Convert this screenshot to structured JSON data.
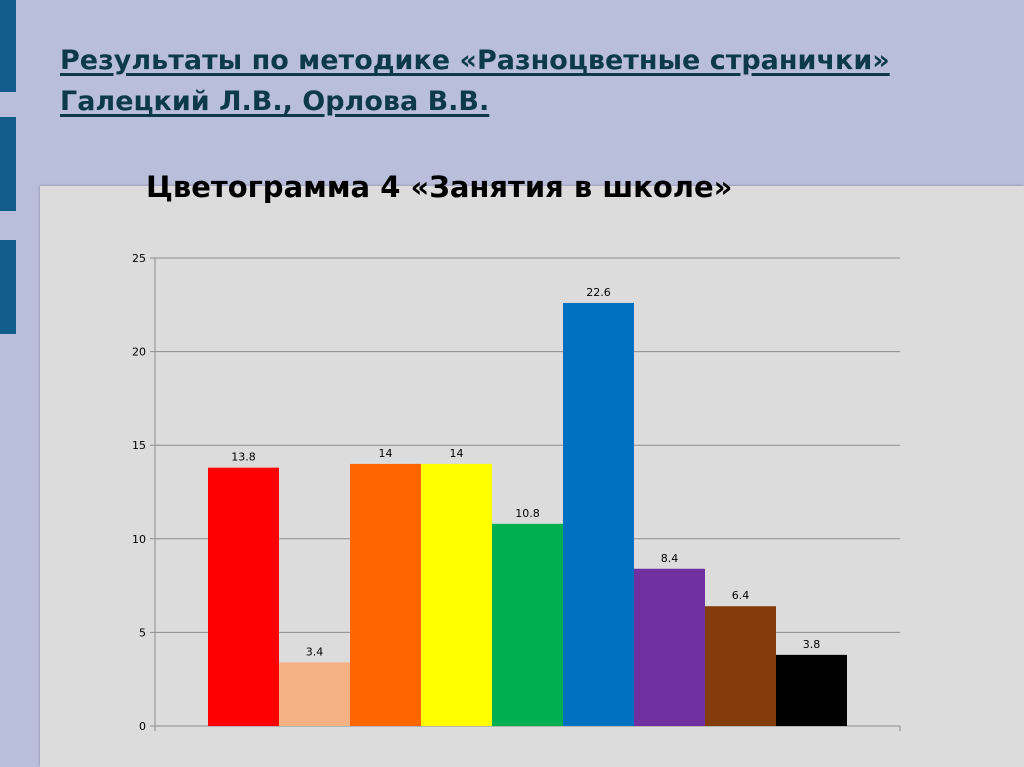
{
  "slide": {
    "heading": "Результаты по методике «Разноцветные странички» Галецкий Л.В., Орлова В.В."
  },
  "chart_data": {
    "type": "bar",
    "title": "Цветограмма 4 «Занятия в школе»",
    "xlabel": "",
    "ylabel": "",
    "ylim": [
      0,
      25
    ],
    "yticks": [
      "0",
      "5",
      "10",
      "15",
      "20",
      "25"
    ],
    "grid": true,
    "legend": "none",
    "values": [
      13.8,
      3.4,
      14,
      14,
      10.8,
      22.6,
      8.4,
      6.4,
      3.8
    ],
    "labels": [
      "13.8",
      "3.4",
      "14",
      "14",
      "10.8",
      "22.6",
      "8.4",
      "6.4",
      "3.8"
    ],
    "colors": [
      "#ff0000",
      "#f4b183",
      "#ff6600",
      "#ffff00",
      "#00b050",
      "#0070c0",
      "#7030a0",
      "#843c0c",
      "#000000"
    ]
  },
  "theme": {
    "background": "#b9bedb",
    "accent": "#135d8c",
    "heading_color": "#0d3a4a",
    "panel": "#dcdcdc"
  }
}
